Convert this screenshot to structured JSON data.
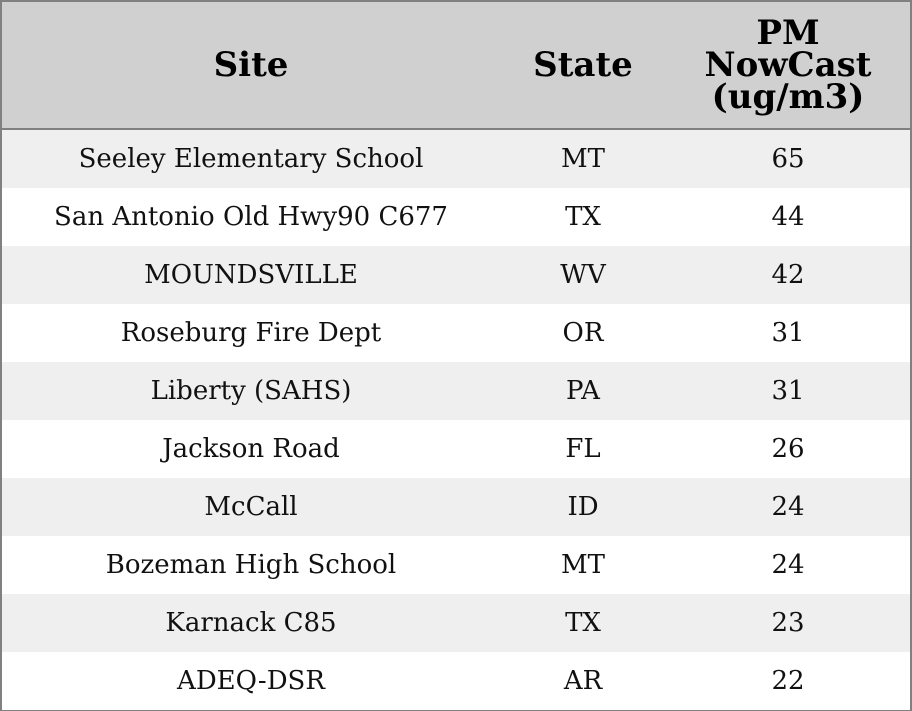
{
  "table": {
    "header": [
      "Site",
      "State",
      "PM NowCast (ug/m3)"
    ],
    "rows": [
      [
        "Seeley Elementary School",
        "MT",
        65
      ],
      [
        "San Antonio Old Hwy90 C677",
        "TX",
        44
      ],
      [
        "MOUNDSVILLE",
        "WV",
        42
      ],
      [
        "Roseburg Fire Dept",
        "OR",
        31
      ],
      [
        "Liberty (SAHS)",
        "PA",
        31
      ],
      [
        "Jackson Road",
        "FL",
        26
      ],
      [
        "McCall",
        "ID",
        24
      ],
      [
        "Bozeman High School",
        "MT",
        24
      ],
      [
        "Karnack C85",
        "TX",
        23
      ],
      [
        "ADEQ-DSR",
        "AR",
        22
      ]
    ]
  }
}
